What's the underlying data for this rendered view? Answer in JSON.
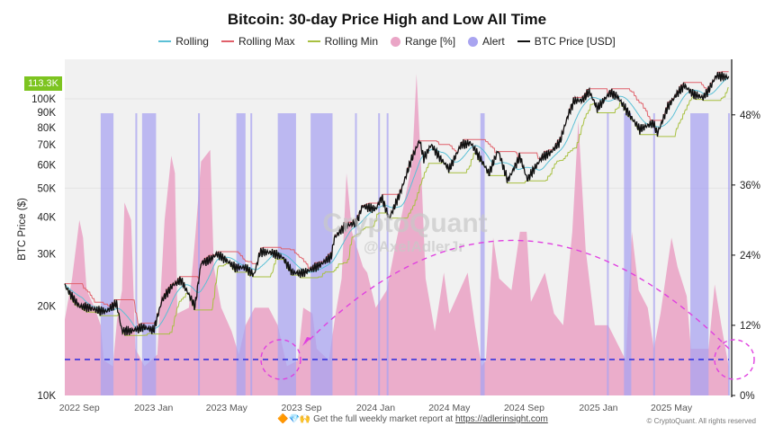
{
  "chart_data": {
    "type": "line",
    "title": "Bitcoin: 30-day Price High and Low All Time",
    "ylabel": "BTC Price ($)",
    "y_scale": "log",
    "ylim": [
      10000,
      136000
    ],
    "y2lim": [
      0,
      57.5
    ],
    "xlim": [
      "2022-08-08",
      "2025-08-08"
    ],
    "grid": true,
    "legend_position": "top",
    "y_ticks": [
      "10K",
      "20K",
      "30K",
      "40K",
      "50K",
      "60K",
      "70K",
      "80K",
      "90K",
      "100K"
    ],
    "y_tick_values": [
      10000,
      20000,
      30000,
      40000,
      50000,
      60000,
      70000,
      80000,
      90000,
      100000
    ],
    "y2_ticks": [
      "0%",
      "12%",
      "24%",
      "36%",
      "48%"
    ],
    "y2_tick_values": [
      0,
      12,
      24,
      36,
      48
    ],
    "x_ticks": [
      "2022 Sep",
      "2023 Jan",
      "2023 May",
      "2023 Sep",
      "2024 Jan",
      "2024 May",
      "2024 Sep",
      "2025 Jan",
      "2025 May"
    ],
    "x_tick_dates": [
      "2022-09-01",
      "2023-01-01",
      "2023-05-01",
      "2023-09-01",
      "2024-01-01",
      "2024-05-01",
      "2024-09-01",
      "2025-01-01",
      "2025-05-01"
    ],
    "last_price_label": "113.3K",
    "alert_threshold_pct": 6,
    "legend": [
      "Rolling",
      "Rolling Max",
      "Rolling Min",
      "Range [%]",
      "Alert",
      "BTC Price [USD]"
    ],
    "colors": {
      "rolling": "#5bc0d6",
      "rolling_max": "#e0606a",
      "rolling_min": "#a8c040",
      "range": "#eaa5c6",
      "alert": "#a9a4f0",
      "price": "#111111",
      "threshold": "#2a2ae0",
      "annotation": "#e040e0",
      "badge": "#7dc420"
    },
    "price": [
      [
        "2022-08-08",
        23500
      ],
      [
        "2022-08-20",
        21500
      ],
      [
        "2022-09-01",
        20000
      ],
      [
        "2022-09-15",
        19800
      ],
      [
        "2022-10-01",
        19400
      ],
      [
        "2022-10-15",
        19200
      ],
      [
        "2022-11-01",
        20500
      ],
      [
        "2022-11-10",
        16500
      ],
      [
        "2022-11-25",
        16500
      ],
      [
        "2022-12-15",
        17000
      ],
      [
        "2023-01-01",
        16600
      ],
      [
        "2023-01-15",
        21000
      ],
      [
        "2023-02-01",
        23500
      ],
      [
        "2023-02-15",
        24500
      ],
      [
        "2023-03-10",
        20000
      ],
      [
        "2023-03-20",
        28000
      ],
      [
        "2023-04-01",
        28500
      ],
      [
        "2023-04-15",
        30000
      ],
      [
        "2023-05-01",
        28500
      ],
      [
        "2023-05-15",
        27000
      ],
      [
        "2023-06-01",
        27000
      ],
      [
        "2023-06-15",
        25500
      ],
      [
        "2023-06-25",
        30500
      ],
      [
        "2023-07-15",
        30300
      ],
      [
        "2023-08-01",
        29200
      ],
      [
        "2023-08-17",
        26000
      ],
      [
        "2023-09-01",
        25800
      ],
      [
        "2023-09-15",
        26500
      ],
      [
        "2023-10-01",
        27500
      ],
      [
        "2023-10-20",
        29500
      ],
      [
        "2023-10-25",
        34000
      ],
      [
        "2023-11-10",
        37000
      ],
      [
        "2023-12-01",
        38500
      ],
      [
        "2023-12-10",
        43500
      ],
      [
        "2024-01-01",
        42500
      ],
      [
        "2024-01-11",
        46500
      ],
      [
        "2024-01-23",
        39500
      ],
      [
        "2024-02-10",
        48000
      ],
      [
        "2024-02-28",
        62000
      ],
      [
        "2024-03-13",
        72500
      ],
      [
        "2024-03-20",
        63000
      ],
      [
        "2024-04-01",
        70000
      ],
      [
        "2024-04-15",
        63500
      ],
      [
        "2024-05-01",
        58000
      ],
      [
        "2024-05-20",
        70000
      ],
      [
        "2024-06-05",
        71000
      ],
      [
        "2024-06-25",
        61000
      ],
      [
        "2024-07-05",
        56000
      ],
      [
        "2024-07-20",
        67000
      ],
      [
        "2024-08-05",
        53000
      ],
      [
        "2024-08-25",
        64000
      ],
      [
        "2024-09-06",
        53500
      ],
      [
        "2024-09-30",
        63500
      ],
      [
        "2024-10-15",
        66000
      ],
      [
        "2024-10-30",
        72000
      ],
      [
        "2024-11-12",
        88000
      ],
      [
        "2024-11-22",
        98500
      ],
      [
        "2024-12-05",
        99000
      ],
      [
        "2024-12-17",
        106000
      ],
      [
        "2024-12-30",
        93000
      ],
      [
        "2025-01-20",
        105000
      ],
      [
        "2025-02-01",
        102000
      ],
      [
        "2025-02-25",
        86000
      ],
      [
        "2025-03-10",
        79000
      ],
      [
        "2025-04-01",
        83000
      ],
      [
        "2025-04-08",
        76500
      ],
      [
        "2025-04-25",
        94000
      ],
      [
        "2025-05-10",
        104000
      ],
      [
        "2025-05-22",
        111000
      ],
      [
        "2025-06-05",
        104000
      ],
      [
        "2025-06-22",
        101000
      ],
      [
        "2025-07-01",
        107000
      ],
      [
        "2025-07-14",
        120000
      ],
      [
        "2025-08-03",
        118000
      ]
    ],
    "range_pct": [
      [
        "2022-08-08",
        13
      ],
      [
        "2022-08-20",
        20
      ],
      [
        "2022-09-01",
        30
      ],
      [
        "2022-09-07",
        27
      ],
      [
        "2022-09-13",
        18
      ],
      [
        "2022-09-26",
        15
      ],
      [
        "2022-10-06",
        12
      ],
      [
        "2022-10-11",
        6
      ],
      [
        "2022-10-26",
        5
      ],
      [
        "2022-11-02",
        13
      ],
      [
        "2022-11-10",
        18
      ],
      [
        "2022-11-14",
        33
      ],
      [
        "2022-11-25",
        30
      ],
      [
        "2022-12-02",
        8
      ],
      [
        "2022-12-17",
        5
      ],
      [
        "2023-01-07",
        7
      ],
      [
        "2023-01-19",
        30
      ],
      [
        "2023-01-30",
        41
      ],
      [
        "2023-02-05",
        38
      ],
      [
        "2023-02-09",
        14
      ],
      [
        "2023-02-28",
        15
      ],
      [
        "2023-03-11",
        28
      ],
      [
        "2023-03-20",
        40
      ],
      [
        "2023-04-04",
        42
      ],
      [
        "2023-04-10",
        22
      ],
      [
        "2023-04-22",
        15
      ],
      [
        "2023-05-09",
        11
      ],
      [
        "2023-05-21",
        7
      ],
      [
        "2023-06-01",
        12
      ],
      [
        "2023-06-16",
        15
      ],
      [
        "2023-07-09",
        15
      ],
      [
        "2023-07-24",
        12
      ],
      [
        "2023-08-08",
        5
      ],
      [
        "2023-08-26",
        6
      ],
      [
        "2023-09-04",
        15
      ],
      [
        "2023-09-19",
        14
      ],
      [
        "2023-09-26",
        8
      ],
      [
        "2023-10-16",
        6
      ],
      [
        "2023-10-27",
        14
      ],
      [
        "2023-11-06",
        20
      ],
      [
        "2023-11-14",
        38
      ],
      [
        "2023-11-23",
        28
      ],
      [
        "2023-12-11",
        22
      ],
      [
        "2023-12-18",
        21
      ],
      [
        "2024-01-01",
        15
      ],
      [
        "2024-01-19",
        18
      ],
      [
        "2024-02-03",
        26
      ],
      [
        "2024-02-15",
        32
      ],
      [
        "2024-03-01",
        40
      ],
      [
        "2024-03-08",
        55
      ],
      [
        "2024-03-16",
        38
      ],
      [
        "2024-03-23",
        20
      ],
      [
        "2024-04-07",
        11
      ],
      [
        "2024-04-22",
        21
      ],
      [
        "2024-05-01",
        14
      ],
      [
        "2024-05-31",
        21
      ],
      [
        "2024-06-12",
        12
      ],
      [
        "2024-06-23",
        5
      ],
      [
        "2024-06-30",
        6
      ],
      [
        "2024-07-12",
        27
      ],
      [
        "2024-07-22",
        20
      ],
      [
        "2024-08-11",
        18
      ],
      [
        "2024-08-25",
        28
      ],
      [
        "2024-09-05",
        28
      ],
      [
        "2024-09-12",
        16
      ],
      [
        "2024-10-05",
        21
      ],
      [
        "2024-10-20",
        14
      ],
      [
        "2024-11-04",
        12
      ],
      [
        "2024-11-19",
        28
      ],
      [
        "2024-11-29",
        47
      ],
      [
        "2024-12-11",
        25
      ],
      [
        "2024-12-26",
        12
      ],
      [
        "2025-01-17",
        12
      ],
      [
        "2025-02-15",
        6
      ],
      [
        "2025-02-25",
        28
      ],
      [
        "2025-03-08",
        18
      ],
      [
        "2025-03-23",
        15
      ],
      [
        "2025-04-02",
        8
      ],
      [
        "2025-04-13",
        14
      ],
      [
        "2025-05-01",
        27
      ],
      [
        "2025-05-11",
        22
      ],
      [
        "2025-05-26",
        17
      ],
      [
        "2025-06-02",
        8
      ],
      [
        "2025-07-01",
        8
      ],
      [
        "2025-07-11",
        19
      ],
      [
        "2025-07-22",
        12
      ],
      [
        "2025-08-03",
        5
      ]
    ],
    "alerts": [
      [
        "2022-10-06",
        "2022-10-27"
      ],
      [
        "2022-12-02",
        "2022-12-03"
      ],
      [
        "2022-12-13",
        "2023-01-05"
      ],
      [
        "2023-03-15",
        "2023-03-16"
      ],
      [
        "2023-05-17",
        "2023-06-01"
      ],
      [
        "2023-06-09",
        "2023-06-10"
      ],
      [
        "2023-07-24",
        "2023-08-23"
      ],
      [
        "2023-09-16",
        "2023-10-22"
      ],
      [
        "2023-11-28",
        "2023-11-30"
      ],
      [
        "2024-01-05",
        "2024-01-07"
      ],
      [
        "2024-01-19",
        "2024-01-21"
      ],
      [
        "2024-06-21",
        "2024-06-28"
      ],
      [
        "2025-01-15",
        "2025-01-16"
      ],
      [
        "2025-02-12",
        "2025-02-24"
      ],
      [
        "2025-04-01",
        "2025-04-02"
      ],
      [
        "2025-06-01",
        "2025-07-01"
      ],
      [
        "2025-08-02",
        "2025-08-04"
      ]
    ]
  },
  "watermark": {
    "brand": "CryptoQuant",
    "handle": "@AxelAdlerJr"
  },
  "footer": {
    "emoji": "🔶💎🙌",
    "text": "Get the full weekly market report at ",
    "link": "https://adlerinsight.com",
    "copyright": "© CryptoQuant. All rights reserved"
  }
}
